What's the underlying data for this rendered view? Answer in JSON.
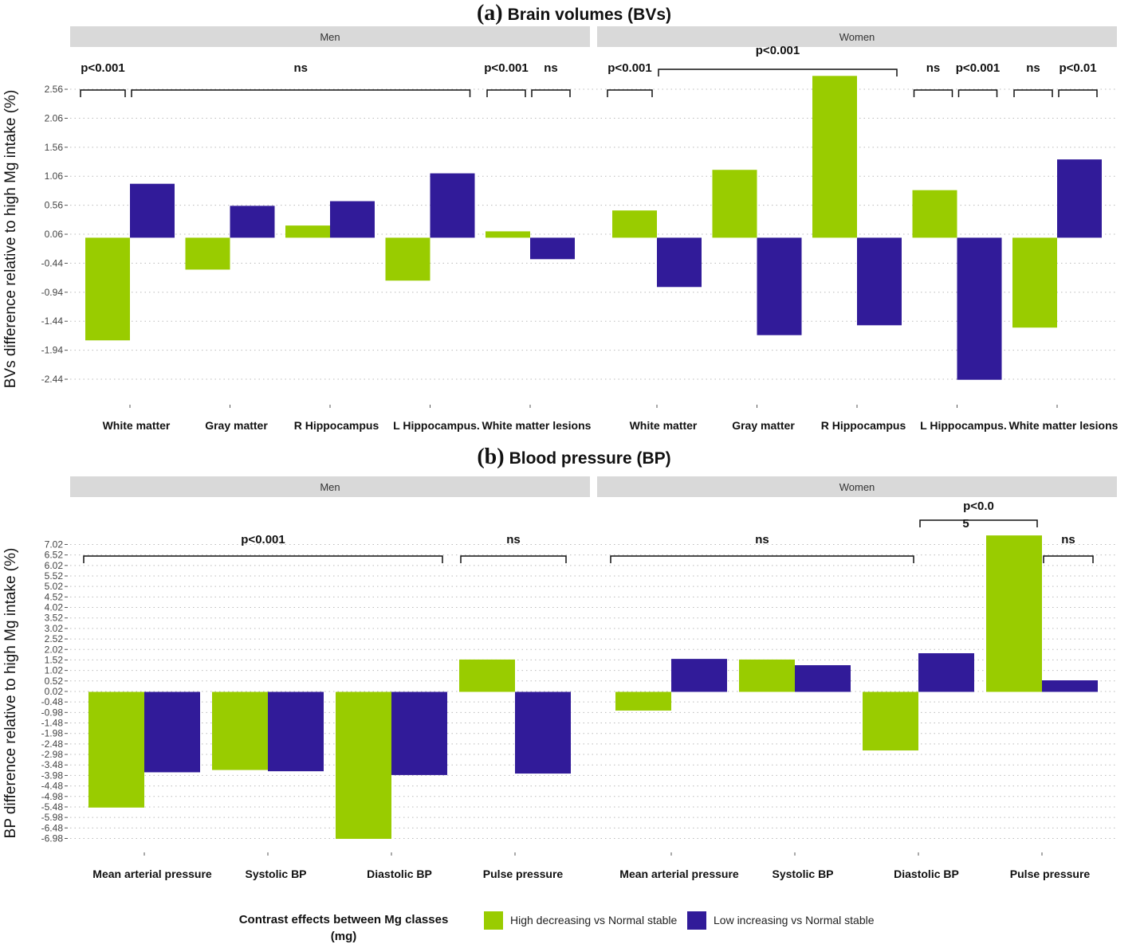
{
  "colors": {
    "high_decreasing": "#99cc00",
    "low_increasing": "#311b99",
    "strip": "#d9d9d9",
    "grid": "#bbbbbb"
  },
  "legend": {
    "title_line1": "Contrast effects between Mg classes",
    "title_line2": "(mg)",
    "entries": [
      "High decreasing vs Normal stable",
      "Low increasing vs Normal stable"
    ]
  },
  "chart_data": [
    {
      "type": "bar",
      "panel_label": "(a)",
      "title": "Brain volumes (BVs)",
      "ylabel": "BVs difference relative to high Mg intake (%)",
      "yticks": [
        "2.56",
        "2.06",
        "1.56",
        "1.06",
        "0.56",
        "0.06",
        "-0.44",
        "-0.94",
        "-1.44",
        "-1.94",
        "-2.44"
      ],
      "ylim": [
        -2.75,
        2.85
      ],
      "grid": true,
      "legend_position": "bottom",
      "categories": [
        "White matter",
        "Gray matter",
        "R Hippocampus",
        "L Hippocampus.",
        "White matter lesions"
      ],
      "facets": [
        {
          "name": "Men",
          "series": [
            {
              "name": "High decreasing vs Normal stable",
              "values": [
                -1.77,
                -0.55,
                0.21,
                -0.74,
                0.11
              ]
            },
            {
              "name": "Low increasing vs Normal stable",
              "values": [
                0.93,
                0.55,
                0.63,
                1.11,
                -0.37
              ]
            }
          ],
          "annotations": [
            {
              "text": "p<0.001",
              "bars": [
                0,
                0
              ]
            },
            {
              "text": "ns",
              "bars": [
                1,
                7
              ]
            },
            {
              "text": "p<0.001",
              "bars": [
                8,
                8
              ]
            },
            {
              "text": "ns",
              "bars": [
                9,
                9
              ]
            }
          ]
        },
        {
          "name": "Women",
          "series": [
            {
              "name": "High decreasing vs Normal stable",
              "values": [
                0.47,
                1.17,
                2.79,
                0.82,
                -1.55
              ]
            },
            {
              "name": "Low increasing vs Normal stable",
              "values": [
                -0.85,
                -1.68,
                -1.51,
                -2.45,
                1.35
              ]
            }
          ],
          "annotations": [
            {
              "text": "p<0.001",
              "bars": [
                0,
                0
              ]
            },
            {
              "text": "p<0.001",
              "bars": [
                1,
                5
              ],
              "raised": true
            },
            {
              "text": "ns",
              "bars": [
                6,
                6
              ]
            },
            {
              "text": "p<0.001",
              "bars": [
                7,
                7
              ]
            },
            {
              "text": "ns",
              "bars": [
                8,
                8
              ]
            },
            {
              "text": "p<0.01",
              "bars": [
                9,
                9
              ]
            }
          ]
        }
      ]
    },
    {
      "type": "bar",
      "panel_label": "(b)",
      "title": "Blood pressure (BP)",
      "ylabel": "BP difference relative to high Mg intake (%)",
      "yticks": [
        "7.02",
        "6.52",
        "6.02",
        "5.52",
        "5.02",
        "4.52",
        "4.02",
        "3.52",
        "3.02",
        "2.52",
        "2.02",
        "1.52",
        "1.02",
        "0.52",
        "0.02",
        "-0.48",
        "-0.98",
        "-1.48",
        "-1.98",
        "-2.48",
        "-2.98",
        "-3.48",
        "-3.98",
        "-4.48",
        "-4.98",
        "-5.48",
        "-5.98",
        "-6.48",
        "-6.98"
      ],
      "ylim": [
        -7.9,
        8.0
      ],
      "grid": true,
      "legend_position": "bottom",
      "categories": [
        "Mean arterial pressure",
        "Systolic BP",
        "Diastolic BP",
        "Pulse pressure"
      ],
      "facets": [
        {
          "name": "Men",
          "series": [
            {
              "name": "High decreasing vs Normal stable",
              "values": [
                -5.51,
                -3.72,
                -7.0,
                1.54
              ]
            },
            {
              "name": "Low increasing vs Normal stable",
              "values": [
                -3.83,
                -3.78,
                -3.96,
                -3.89
              ]
            }
          ],
          "annotations": [
            {
              "text": "p<0.001",
              "bars": [
                0,
                5
              ]
            },
            {
              "text": "ns",
              "bars": [
                6,
                7
              ]
            }
          ]
        },
        {
          "name": "Women",
          "series": [
            {
              "name": "High decreasing vs Normal stable",
              "values": [
                -0.89,
                1.54,
                -2.79,
                7.45
              ]
            },
            {
              "name": "Low increasing vs Normal stable",
              "values": [
                1.57,
                1.27,
                1.84,
                0.55
              ]
            }
          ],
          "annotations": [
            {
              "text": "ns",
              "bars": [
                0,
                4
              ]
            },
            {
              "text": "p<0.0\n5",
              "bars": [
                5,
                6
              ],
              "raised": true
            },
            {
              "text": "ns",
              "bars": [
                7,
                7
              ]
            }
          ]
        }
      ]
    }
  ]
}
